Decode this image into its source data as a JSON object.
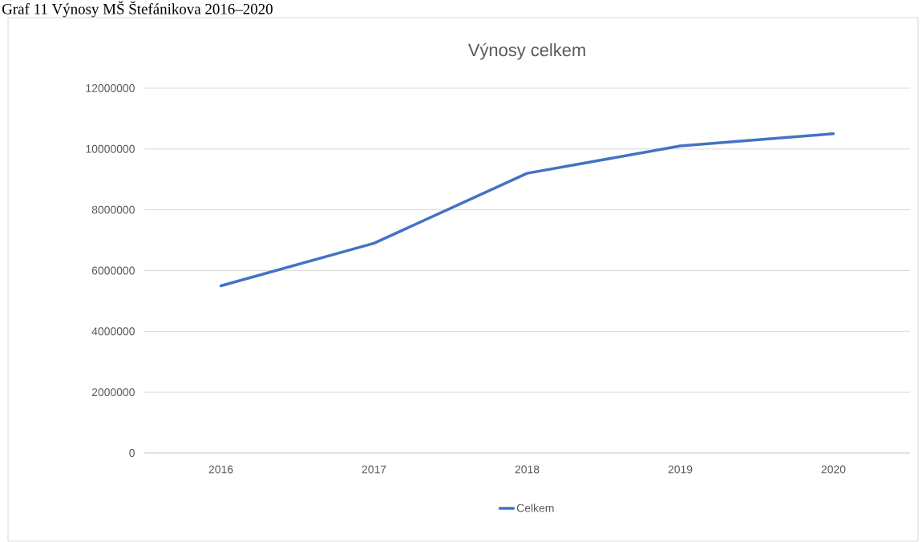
{
  "chart_data": {
    "type": "line",
    "title": "Výnosy celkem",
    "annotations": [
      "Graf 11 Výnosy MŠ Štefánikova 2016–2020"
    ],
    "categories": [
      "2016",
      "2017",
      "2018",
      "2019",
      "2020"
    ],
    "series": [
      {
        "name": "Celkem",
        "color": "#4472c4",
        "values": [
          5500000,
          6900000,
          9200000,
          10100000,
          10500000
        ]
      }
    ],
    "ylim": [
      0,
      12000000
    ],
    "yticks": [
      0,
      2000000,
      4000000,
      6000000,
      8000000,
      10000000,
      12000000
    ],
    "grid": "y",
    "legend": "bottom",
    "marker": "none",
    "line_style": "solid"
  }
}
